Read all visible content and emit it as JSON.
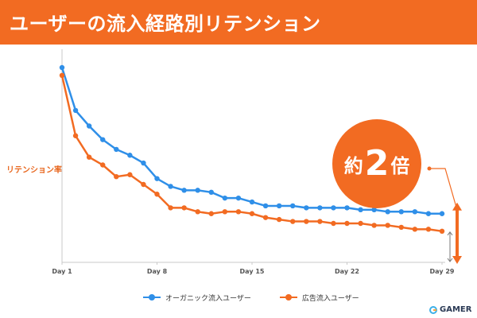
{
  "header": {
    "title": "ユーザーの流入経路別リテンション"
  },
  "badge": {
    "prefix": "約",
    "value": "2",
    "suffix": "倍"
  },
  "brand": {
    "name": "GAMER"
  },
  "colors": {
    "accent": "#f26b22",
    "organic": "#2f8fe8",
    "ad": "#f26b22"
  },
  "chart_data": {
    "type": "line",
    "ylabel": "リテンション率",
    "xlabel": "",
    "x": [
      1,
      2,
      3,
      4,
      5,
      6,
      7,
      8,
      9,
      10,
      11,
      12,
      13,
      14,
      15,
      16,
      17,
      18,
      19,
      20,
      21,
      22,
      23,
      24,
      25,
      26,
      27,
      28,
      29
    ],
    "xtick_labels": [
      "Day 1",
      "Day 8",
      "Day 15",
      "Day 22",
      "Day 29"
    ],
    "xtick_values": [
      1,
      8,
      15,
      22,
      29
    ],
    "xlim": [
      1,
      29
    ],
    "y_ticks_shown": false,
    "grid": false,
    "legend_position": "bottom",
    "series": [
      {
        "name": "オーガニック流入ユーザー",
        "color": "#2f8fe8",
        "values": [
          100,
          78,
          70,
          63,
          58,
          55,
          51,
          43,
          39,
          37,
          37,
          36,
          33,
          33,
          31,
          29,
          29,
          29,
          28,
          28,
          28,
          28,
          27,
          27,
          26,
          26,
          26,
          25,
          25
        ]
      },
      {
        "name": "広告流入ユーザー",
        "color": "#f26b22",
        "values": [
          96,
          65,
          54,
          50,
          44,
          45,
          40,
          35,
          28,
          28,
          26,
          25,
          26,
          26,
          25,
          23,
          22,
          21,
          21,
          21,
          20,
          20,
          20,
          19,
          19,
          18,
          17,
          17,
          16
        ]
      }
    ]
  }
}
